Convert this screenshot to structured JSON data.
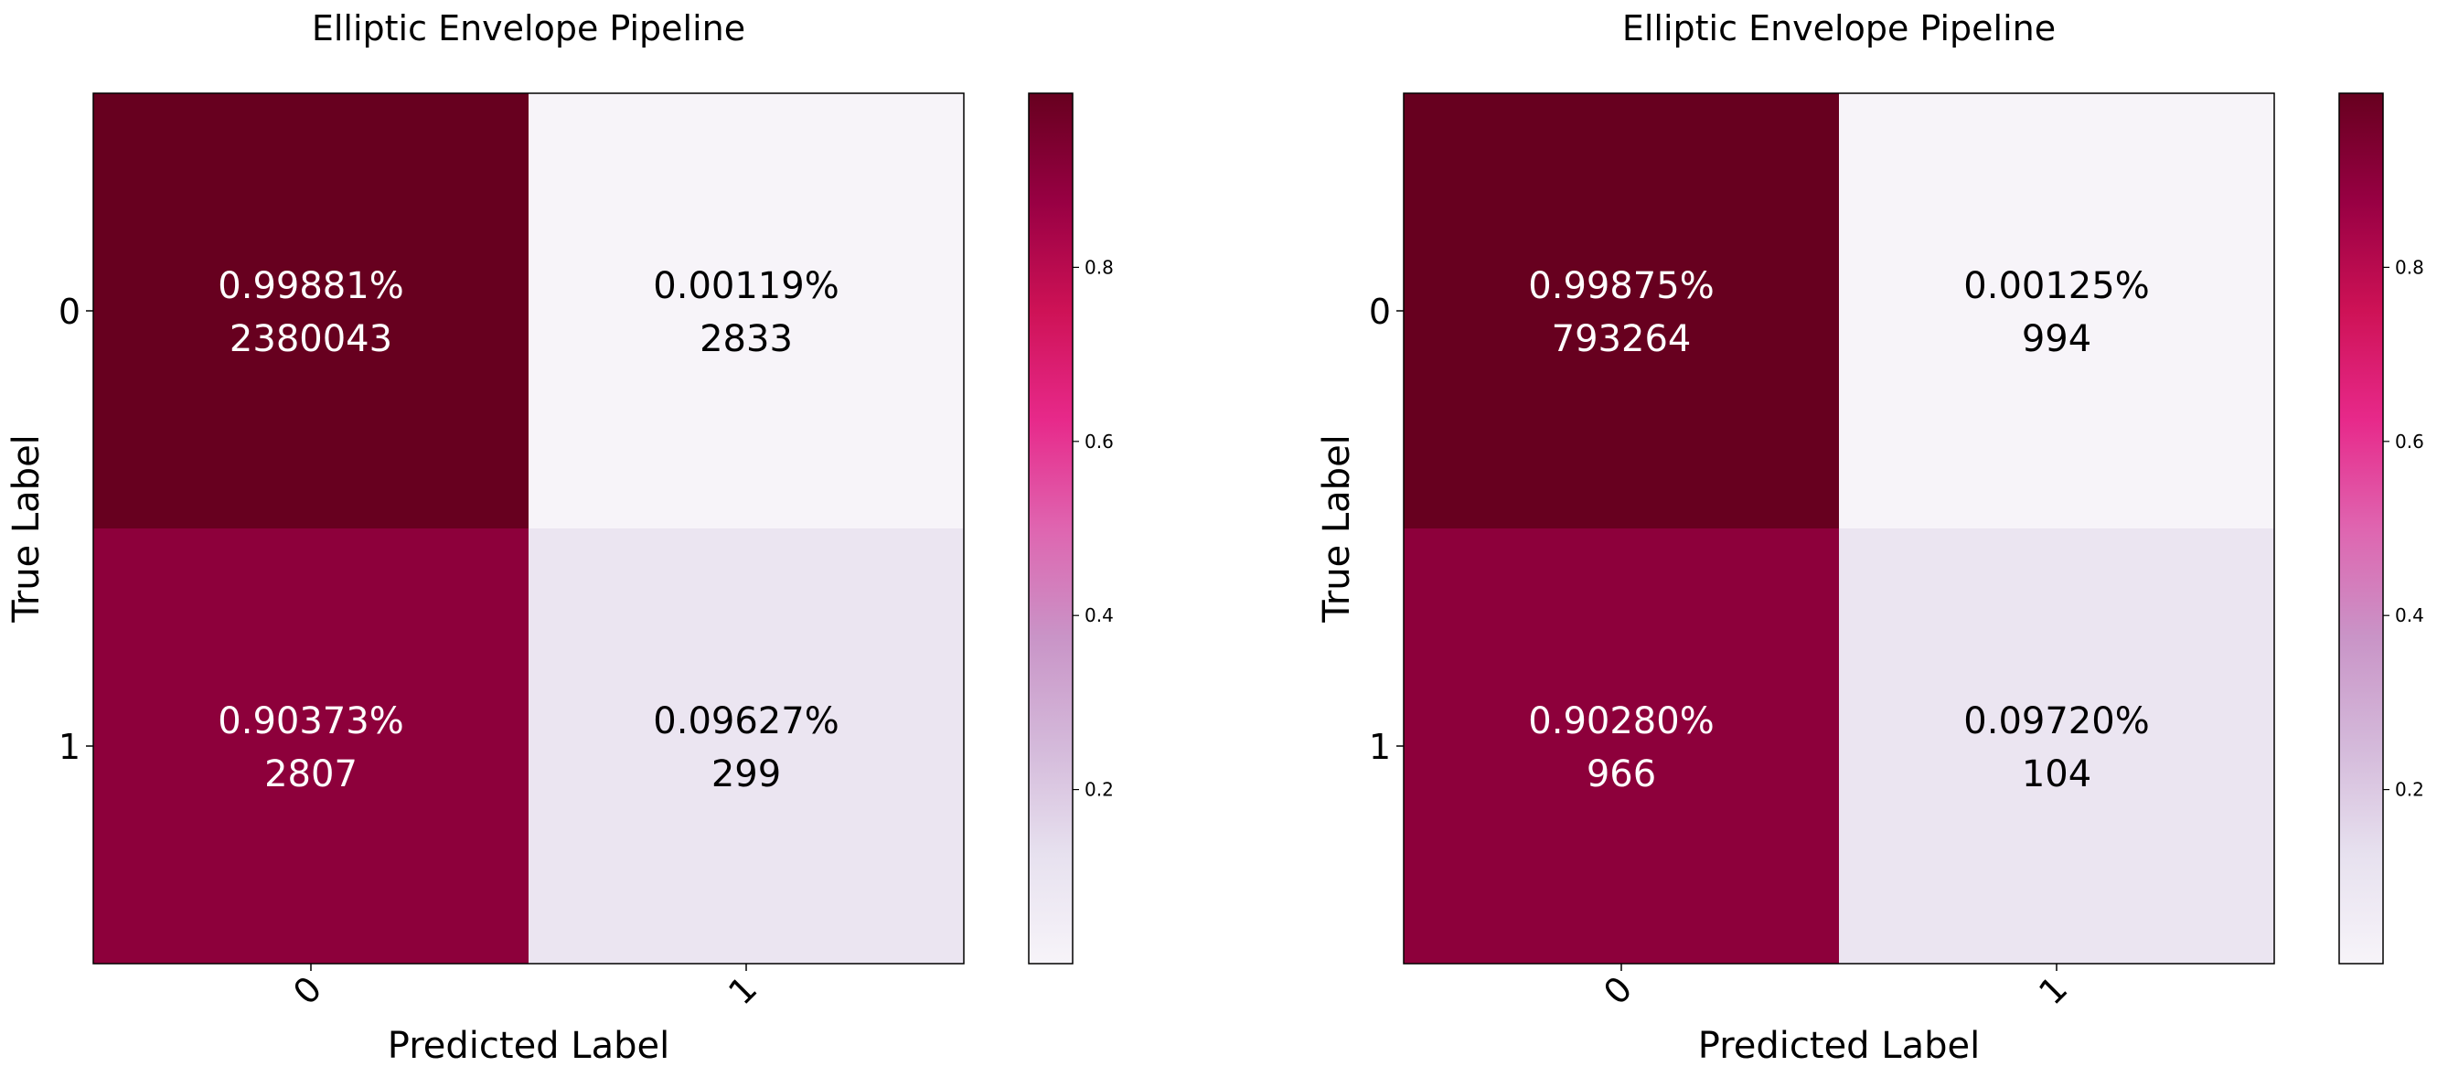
{
  "chart_data": [
    {
      "type": "heatmap",
      "title": "Elliptic Envelope Pipeline",
      "xlabel": "Predicted Label",
      "ylabel": "True Label",
      "x_categories": [
        "0",
        "1"
      ],
      "y_categories": [
        "0",
        "1"
      ],
      "values": [
        [
          0.99881,
          0.00119
        ],
        [
          0.90373,
          0.09627
        ]
      ],
      "cell_labels": [
        [
          "0.99881%",
          "0.00119%"
        ],
        [
          "0.90373%",
          "0.09627%"
        ]
      ],
      "counts": [
        [
          "2380043",
          "2833"
        ],
        [
          "2807",
          "299"
        ]
      ],
      "colorbar": {
        "range": [
          0.0,
          1.0
        ],
        "ticks": [
          "0.2",
          "0.4",
          "0.6",
          "0.8"
        ],
        "colormap": "PuRd"
      }
    },
    {
      "type": "heatmap",
      "title": "Elliptic Envelope Pipeline",
      "xlabel": "Predicted Label",
      "ylabel": "True Label",
      "x_categories": [
        "0",
        "1"
      ],
      "y_categories": [
        "0",
        "1"
      ],
      "values": [
        [
          0.99875,
          0.00125
        ],
        [
          0.9028,
          0.0972
        ]
      ],
      "cell_labels": [
        [
          "0.99875%",
          "0.00125%"
        ],
        [
          "0.90280%",
          "0.09720%"
        ]
      ],
      "counts": [
        [
          "793264",
          "994"
        ],
        [
          "966",
          "104"
        ]
      ],
      "colorbar": {
        "range": [
          0.0,
          1.0
        ],
        "ticks": [
          "0.2",
          "0.4",
          "0.6",
          "0.8"
        ],
        "colormap": "PuRd"
      }
    }
  ],
  "colors": {
    "colormap_stops": [
      "#f7f4f9",
      "#e7e1ef",
      "#d4b9da",
      "#c994c7",
      "#df65b0",
      "#e7298a",
      "#ce1256",
      "#980043",
      "#67001f"
    ],
    "text_dark": "#000000",
    "text_light": "#ffffff"
  }
}
